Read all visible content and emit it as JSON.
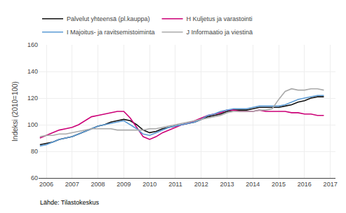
{
  "chart_data": {
    "type": "line",
    "ylabel": "Indeksi (2010=100)",
    "source": "Lähde: Tilastokeskus",
    "xlim": [
      2005.7,
      2017.2
    ],
    "xticks": [
      2006,
      2007,
      2008,
      2009,
      2010,
      2011,
      2012,
      2013,
      2014,
      2015,
      2016,
      2017
    ],
    "ylim": [
      60,
      160
    ],
    "yticks": [
      60,
      80,
      100,
      120,
      140,
      160
    ],
    "grid": true,
    "legend": "top",
    "x": [
      2005.75,
      2006.0,
      2006.25,
      2006.5,
      2006.75,
      2007.0,
      2007.25,
      2007.5,
      2007.75,
      2008.0,
      2008.25,
      2008.5,
      2008.75,
      2009.0,
      2009.25,
      2009.5,
      2009.75,
      2010.0,
      2010.25,
      2010.5,
      2010.75,
      2011.0,
      2011.25,
      2011.5,
      2011.75,
      2012.0,
      2012.25,
      2012.5,
      2012.75,
      2013.0,
      2013.25,
      2013.5,
      2013.75,
      2014.0,
      2014.25,
      2014.5,
      2014.75,
      2015.0,
      2015.25,
      2015.5,
      2015.75,
      2016.0,
      2016.25,
      2016.5,
      2016.75
    ],
    "series": [
      {
        "name": "Palvelut yhteensä (pl.kauppa)",
        "color": "#111111",
        "values": [
          85,
          86,
          87,
          89,
          90,
          91,
          93,
          95,
          97,
          99,
          100,
          102,
          103,
          104,
          103,
          100,
          96,
          94,
          95,
          97,
          98,
          99,
          100,
          101,
          102,
          104,
          106,
          107,
          108,
          110,
          111,
          111,
          111,
          112,
          113,
          113,
          113,
          113,
          114,
          115,
          117,
          118,
          120,
          121,
          121
        ]
      },
      {
        "name": "H Kuljetus ja varastointi",
        "color": "#cc0077",
        "values": [
          90,
          92,
          94,
          96,
          97,
          98,
          100,
          103,
          106,
          107,
          108,
          109,
          110,
          110,
          105,
          98,
          91,
          89,
          91,
          94,
          96,
          98,
          100,
          101,
          103,
          105,
          107,
          108,
          109,
          111,
          111,
          110,
          110,
          110,
          111,
          110,
          110,
          110,
          110,
          109,
          109,
          108,
          108,
          107,
          107
        ]
      },
      {
        "name": "I Majoitus- ja ravitsemistoiminta",
        "color": "#5b9bd5",
        "values": [
          84,
          85,
          87,
          89,
          90,
          91,
          93,
          95,
          97,
          99,
          100,
          101,
          102,
          103,
          100,
          97,
          93,
          92,
          94,
          96,
          98,
          99,
          100,
          101,
          102,
          104,
          107,
          108,
          110,
          111,
          112,
          112,
          112,
          113,
          114,
          114,
          114,
          114,
          115,
          117,
          119,
          120,
          121,
          122,
          122
        ]
      },
      {
        "name": "J Informaatio ja viestinä",
        "color": "#aaaaaa",
        "values": [
          91,
          92,
          92,
          93,
          93,
          94,
          95,
          96,
          97,
          97,
          97,
          97,
          96,
          96,
          96,
          96,
          96,
          97,
          97,
          98,
          99,
          100,
          101,
          102,
          103,
          104,
          105,
          106,
          107,
          109,
          110,
          110,
          110,
          110,
          111,
          111,
          112,
          119,
          125,
          127,
          126,
          126,
          127,
          127,
          126
        ]
      }
    ]
  }
}
